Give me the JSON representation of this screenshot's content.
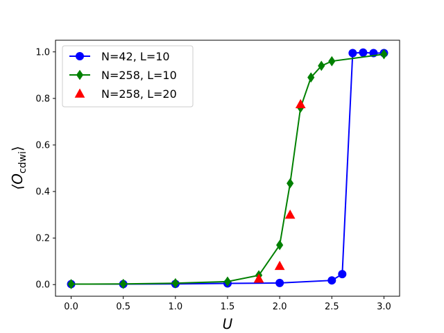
{
  "chart_data": {
    "type": "line",
    "title": "",
    "xlabel": "U",
    "ylabel": "⟨O",
    "ylabel_sub": "cdwi",
    "ylabel_close": "⟩",
    "xlim": [
      -0.15,
      3.15
    ],
    "ylim": [
      -0.05,
      1.05
    ],
    "xticks": [
      0.0,
      0.5,
      1.0,
      1.5,
      2.0,
      2.5,
      3.0
    ],
    "xtick_labels": [
      "0.0",
      "0.5",
      "1.0",
      "1.5",
      "2.0",
      "2.5",
      "3.0"
    ],
    "yticks": [
      0.0,
      0.2,
      0.4,
      0.6,
      0.8,
      1.0
    ],
    "ytick_labels": [
      "0.0",
      "0.2",
      "0.4",
      "0.6",
      "0.8",
      "1.0"
    ],
    "grid": false,
    "legend_position": "upper-left",
    "series": [
      {
        "name": "N=42, L=10",
        "color": "#0000ff",
        "marker": "circle",
        "line": true,
        "x": [
          0.0,
          0.5,
          1.0,
          1.5,
          2.0,
          2.5,
          2.6,
          2.7,
          2.8,
          2.9,
          3.0
        ],
        "y": [
          0.002,
          0.002,
          0.003,
          0.005,
          0.007,
          0.018,
          0.045,
          0.995,
          0.997,
          0.995,
          0.995
        ]
      },
      {
        "name": "N=258, L=10",
        "color": "#008000",
        "marker": "diamond",
        "line": true,
        "x": [
          0.0,
          0.5,
          1.0,
          1.5,
          1.8,
          2.0,
          2.1,
          2.2,
          2.3,
          2.4,
          2.5,
          3.0
        ],
        "y": [
          0.002,
          0.003,
          0.006,
          0.013,
          0.04,
          0.17,
          0.435,
          0.76,
          0.89,
          0.94,
          0.96,
          0.99
        ]
      },
      {
        "name": "N=258, L=20",
        "color": "#ff0000",
        "marker": "triangle",
        "line": false,
        "x": [
          1.8,
          2.0,
          2.1,
          2.2
        ],
        "y": [
          0.025,
          0.08,
          0.3,
          0.775
        ]
      }
    ]
  }
}
